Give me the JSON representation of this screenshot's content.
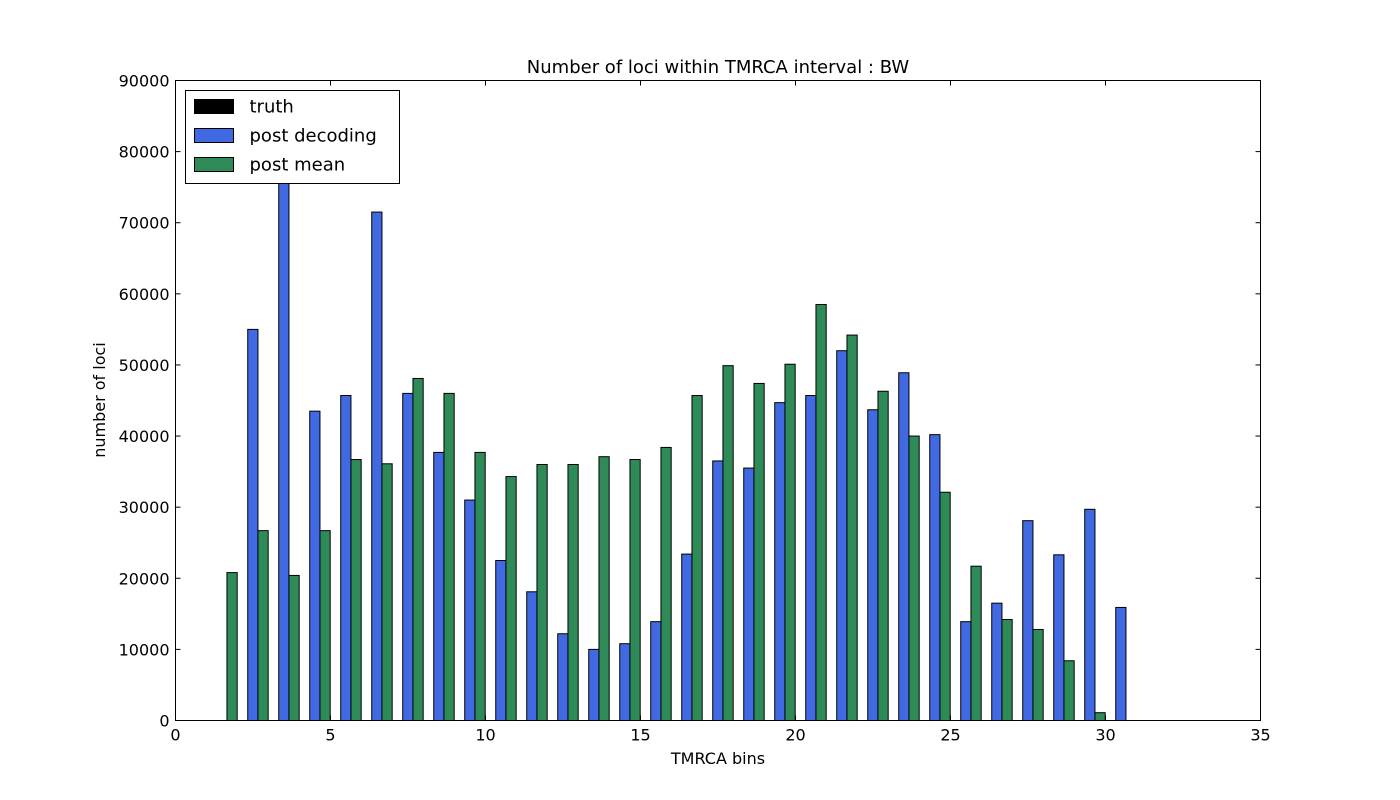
{
  "chart_data": {
    "type": "bar",
    "title": "Number of loci within TMRCA interval : BW",
    "xlabel": "TMRCA bins",
    "ylabel": "number of loci",
    "xlim": [
      0,
      35
    ],
    "ylim": [
      0,
      90000
    ],
    "xticks": [
      "0",
      "5",
      "10",
      "15",
      "20",
      "25",
      "30",
      "35"
    ],
    "yticks": [
      "0",
      "10000",
      "20000",
      "30000",
      "40000",
      "50000",
      "60000",
      "70000",
      "80000",
      "90000"
    ],
    "grid": false,
    "legend_position": "top-left",
    "x": [
      1,
      2,
      3,
      4,
      5,
      6,
      7,
      8,
      9,
      10,
      11,
      12,
      13,
      14,
      15,
      16,
      17,
      18,
      19,
      20,
      21,
      22,
      23,
      24,
      25,
      26,
      27,
      28,
      29,
      30
    ],
    "bar_width": 0.33,
    "series": [
      {
        "name": "truth",
        "color": "#000000",
        "offset": 0,
        "values": [
          0,
          0,
          0,
          0,
          0,
          0,
          0,
          0,
          0,
          0,
          0,
          0,
          0,
          0,
          0,
          0,
          0,
          0,
          0,
          0,
          0,
          0,
          0,
          0,
          0,
          0,
          0,
          0,
          0,
          0
        ]
      },
      {
        "name": "post decoding",
        "color": "#4169e1",
        "offset": 0.33,
        "values": [
          0,
          55000,
          76000,
          43500,
          45700,
          71500,
          46000,
          37700,
          31000,
          22500,
          18100,
          12200,
          10000,
          10800,
          13900,
          23400,
          36500,
          35500,
          44700,
          45700,
          52000,
          43700,
          48900,
          40200,
          13900,
          16500,
          28100,
          23300,
          29700,
          15900
        ]
      },
      {
        "name": "post mean",
        "color": "#2e8b57",
        "offset": 0.66,
        "values": [
          20800,
          26700,
          20400,
          26700,
          36700,
          36100,
          48100,
          46000,
          37700,
          34300,
          36000,
          36000,
          37100,
          36700,
          38400,
          45700,
          49900,
          47400,
          50100,
          58500,
          54200,
          46300,
          40000,
          32100,
          21700,
          14200,
          12800,
          8400,
          1100,
          0
        ]
      }
    ]
  }
}
